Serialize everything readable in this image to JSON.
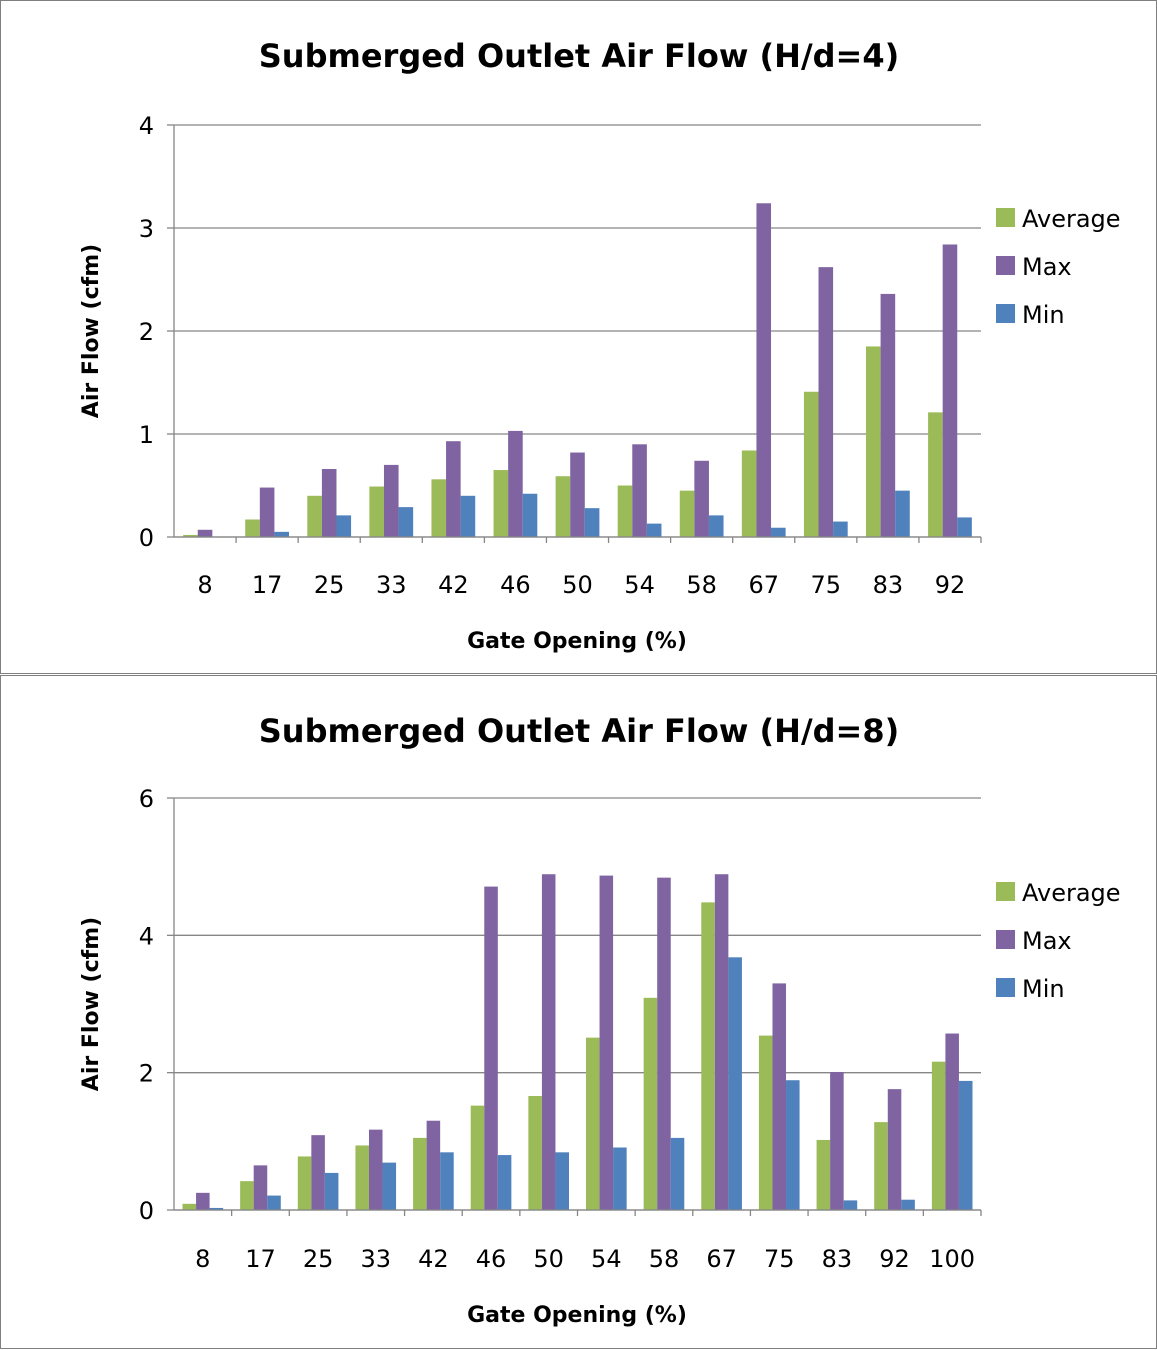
{
  "chart_data": [
    {
      "type": "bar",
      "title": "Submerged Outlet Air Flow (H/d=4)",
      "xlabel": "Gate Opening (%)",
      "ylabel": "Air Flow  (cfm)",
      "ylim": [
        0,
        4
      ],
      "yticks": [
        "0",
        "1",
        "2",
        "3",
        "4"
      ],
      "grid": true,
      "legend_position": "right",
      "categories": [
        "8",
        "17",
        "25",
        "33",
        "42",
        "46",
        "50",
        "54",
        "58",
        "67",
        "75",
        "83",
        "92"
      ],
      "series": [
        {
          "name": "Average",
          "color": "#9bbb59",
          "values": [
            0.02,
            0.17,
            0.4,
            0.49,
            0.56,
            0.65,
            0.59,
            0.5,
            0.45,
            0.84,
            1.41,
            1.85,
            1.21
          ]
        },
        {
          "name": "Max",
          "color": "#8064a2",
          "values": [
            0.07,
            0.48,
            0.66,
            0.7,
            0.93,
            1.03,
            0.82,
            0.9,
            0.74,
            3.24,
            2.62,
            2.36,
            2.84
          ]
        },
        {
          "name": "Min",
          "color": "#4f81bd",
          "values": [
            0.0,
            0.05,
            0.21,
            0.29,
            0.4,
            0.42,
            0.28,
            0.13,
            0.21,
            0.09,
            0.15,
            0.45,
            0.19
          ]
        }
      ]
    },
    {
      "type": "bar",
      "title": "Submerged Outlet Air Flow (H/d=8)",
      "xlabel": "Gate Opening (%)",
      "ylabel": "Air Flow  (cfm)",
      "ylim": [
        0,
        6
      ],
      "yticks": [
        "0",
        "2",
        "4",
        "6"
      ],
      "grid": true,
      "legend_position": "right",
      "categories": [
        "8",
        "17",
        "25",
        "33",
        "42",
        "46",
        "50",
        "54",
        "58",
        "67",
        "75",
        "83",
        "92",
        "100"
      ],
      "series": [
        {
          "name": "Average",
          "color": "#9bbb59",
          "values": [
            0.09,
            0.42,
            0.78,
            0.94,
            1.05,
            1.52,
            1.66,
            2.51,
            3.09,
            4.48,
            2.54,
            1.02,
            1.28,
            2.16
          ]
        },
        {
          "name": "Max",
          "color": "#8064a2",
          "values": [
            0.25,
            0.65,
            1.09,
            1.17,
            1.3,
            4.71,
            4.89,
            4.87,
            4.84,
            4.89,
            3.3,
            2.01,
            1.76,
            2.57
          ]
        },
        {
          "name": "Min",
          "color": "#4f81bd",
          "values": [
            0.03,
            0.21,
            0.54,
            0.69,
            0.84,
            0.8,
            0.84,
            0.91,
            1.05,
            3.68,
            1.89,
            0.14,
            0.15,
            1.88
          ]
        }
      ]
    }
  ]
}
